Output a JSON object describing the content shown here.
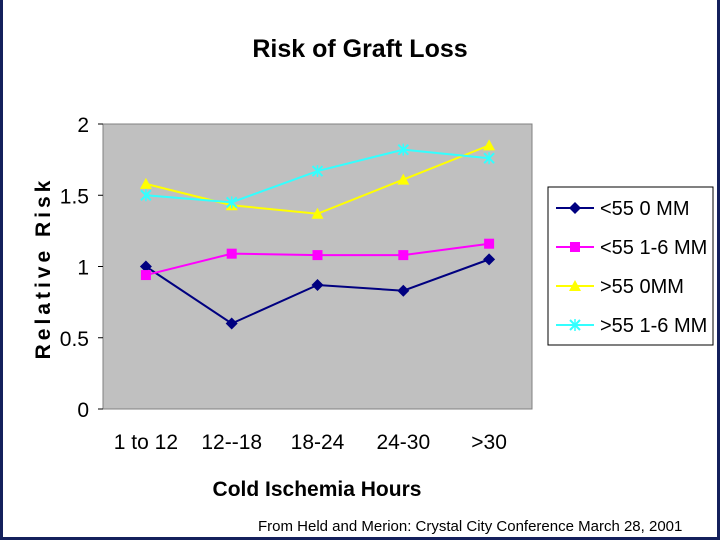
{
  "chart_data": {
    "type": "line",
    "title": "Risk of Graft Loss",
    "xlabel": "Cold Ischemia Hours",
    "ylabel": "Relative Risk",
    "categories": [
      "1 to 12",
      "12--18",
      "18-24",
      "24-30",
      ">30"
    ],
    "ylim": [
      0,
      2
    ],
    "yticks": [
      "0",
      "0.5",
      "1",
      "1.5",
      "2"
    ],
    "grid": false,
    "legend_position": "right",
    "series": [
      {
        "name": "<55 0 MM",
        "values": [
          1.0,
          0.6,
          0.87,
          0.83,
          1.05
        ],
        "color": "#000080",
        "marker": "diamond"
      },
      {
        "name": "<55 1-6 MM",
        "values": [
          0.94,
          1.09,
          1.08,
          1.08,
          1.16
        ],
        "color": "#ff00ff",
        "marker": "square"
      },
      {
        "name": ">55 0MM",
        "values": [
          1.58,
          1.43,
          1.37,
          1.61,
          1.85
        ],
        "color": "#ffff00",
        "marker": "triangle"
      },
      {
        "name": ">55 1-6 MM",
        "values": [
          1.5,
          1.45,
          1.67,
          1.82,
          1.76
        ],
        "color": "#33ffff",
        "marker": "x"
      }
    ],
    "plot_background": "#c0c0c0"
  },
  "caption": "From Held and Merion: Crystal City Conference March 28, 2001"
}
